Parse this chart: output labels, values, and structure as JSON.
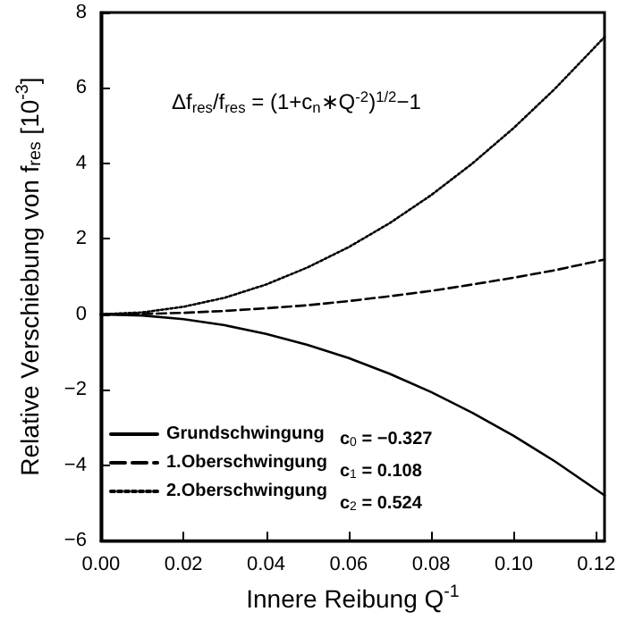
{
  "chart_data": {
    "type": "line",
    "xlabel": "Innere Reibung Q$^{-1}$",
    "ylabel": "Relative Verschiebung von f$_{res}$ [10$^{-3}$]",
    "x": [
      0,
      0.01,
      0.02,
      0.03,
      0.04,
      0.05,
      0.06,
      0.07,
      0.08,
      0.09,
      0.1,
      0.11,
      0.122
    ],
    "series": [
      {
        "name": "Grundschwingung",
        "color": "#000000",
        "line_style": "solid",
        "values": [
          0,
          -0.03,
          -0.13,
          -0.29,
          -0.52,
          -0.81,
          -1.16,
          -1.58,
          -2.06,
          -2.61,
          -3.22,
          -3.9,
          -4.8
        ]
      },
      {
        "name": "1.Oberschwingung",
        "color": "#000000",
        "line_style": "dashed",
        "values": [
          0,
          0.01,
          0.04,
          0.09,
          0.16,
          0.24,
          0.35,
          0.48,
          0.62,
          0.79,
          0.97,
          1.17,
          1.45
        ]
      },
      {
        "name": "2.Oberschwingung",
        "color": "#000000",
        "line_style": "dotted",
        "values": [
          0,
          0.05,
          0.2,
          0.44,
          0.79,
          1.24,
          1.78,
          2.42,
          3.16,
          4.0,
          4.94,
          5.98,
          7.35
        ]
      }
    ],
    "xlim": [
      0,
      0.122
    ],
    "xticks": [
      {
        "value": 0,
        "label": "0.00"
      },
      {
        "value": 0.02,
        "label": "0.02"
      },
      {
        "value": 0.04,
        "label": "0.04"
      },
      {
        "value": 0.06,
        "label": "0.06"
      },
      {
        "value": 0.08,
        "label": "0.08"
      },
      {
        "value": 0.1,
        "label": "0.10"
      },
      {
        "value": 0.12,
        "label": "0.12"
      }
    ],
    "ylim": [
      -6,
      8
    ],
    "yticks": [
      -6,
      -4,
      -2,
      0,
      2,
      4,
      6,
      8
    ],
    "annotations": [
      "Δf$_{res}$/f$_{res}$ = (1+c$_{n}$∗Q$^{-2}$)$^{1/2}$−1",
      "c$_{0}$ = −0.327",
      "c$_{1}$ = 0.108",
      "c$_{2}$ = 0.524"
    ],
    "marker": "none",
    "grid": false,
    "legend": "bottom left"
  }
}
